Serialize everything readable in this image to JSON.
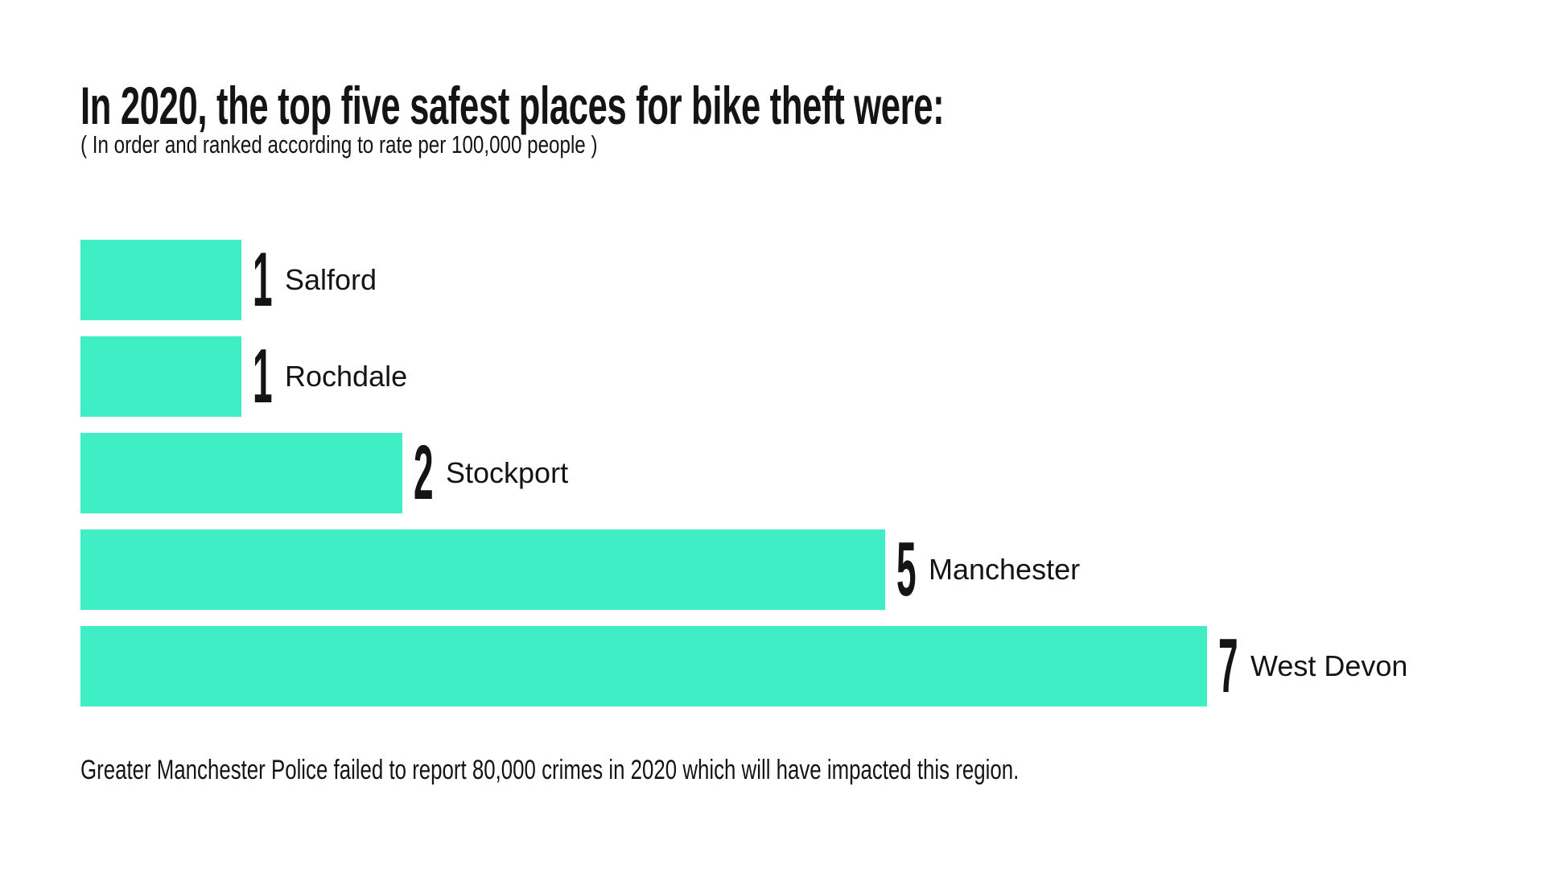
{
  "title": "In 2020, the top five safest places for bike theft were:",
  "subtitle": "( In order and ranked according to rate per 100,000 people )",
  "footnote": "Greater Manchester Police failed to report 80,000 crimes in 2020 which will have impacted this region.",
  "colors": {
    "bar": "#3FEEC5",
    "text": "#141414",
    "background": "#FFFFFF"
  },
  "chart_data": {
    "type": "bar",
    "orientation": "horizontal",
    "title": "In 2020, the top five safest places for bike theft were:",
    "subtitle": "( In order and ranked according to rate per 100,000 people )",
    "footnote": "Greater Manchester Police failed to report 80,000 crimes in 2020 which will have impacted this region.",
    "categories": [
      "Salford",
      "Rochdale",
      "Stockport",
      "Manchester",
      "West Devon"
    ],
    "values": [
      1,
      1,
      2,
      5,
      7
    ],
    "rank_labels": [
      "1",
      "1",
      "2",
      "5",
      "7"
    ],
    "xlim": [
      0,
      7
    ],
    "grid": false,
    "legend": false,
    "value_unit": "rate per 100,000 people"
  }
}
